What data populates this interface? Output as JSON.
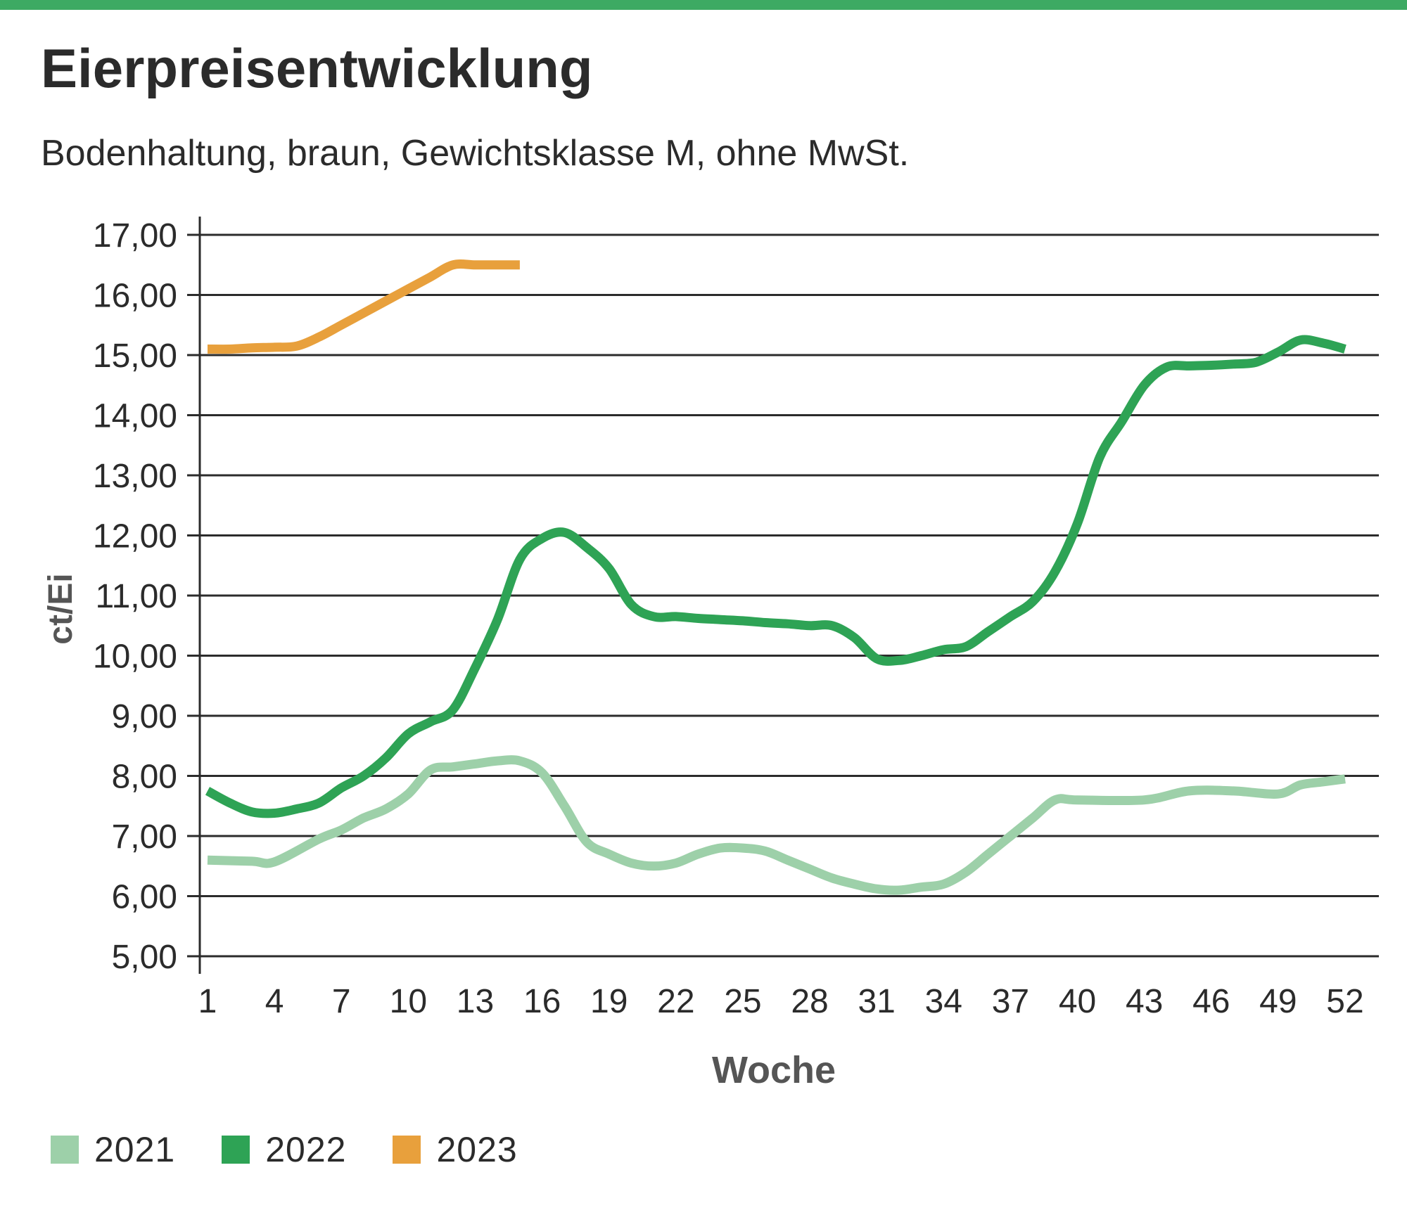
{
  "header": {
    "title": "Eierpreisentwicklung",
    "subtitle": "Bodenhaltung, braun, Gewichtsklasse M, ohne MwSt.",
    "accent_color": "#3daa63"
  },
  "chart_data": {
    "type": "line",
    "title": "Eierpreisentwicklung",
    "subtitle": "Bodenhaltung, braun, Gewichtsklasse M, ohne MwSt.",
    "xlabel": "Woche",
    "ylabel": "ct/Ei",
    "xlim": [
      1,
      52
    ],
    "ylim": [
      5,
      17
    ],
    "x_ticks": [
      "1",
      "4",
      "7",
      "10",
      "13",
      "16",
      "19",
      "22",
      "25",
      "28",
      "31",
      "34",
      "37",
      "40",
      "43",
      "46",
      "49",
      "52"
    ],
    "y_ticks": [
      "5,00",
      "6,00",
      "7,00",
      "8,00",
      "9,00",
      "10,00",
      "11,00",
      "12,00",
      "13,00",
      "14,00",
      "15,00",
      "16,00",
      "17,00"
    ],
    "grid": true,
    "legend_position": "bottom-left",
    "series": [
      {
        "name": "2021",
        "color": "#9dd0a9",
        "x": [
          1,
          3,
          4,
          6,
          7,
          8,
          9,
          10,
          11,
          12,
          13,
          14,
          15,
          16,
          17,
          18,
          19,
          20,
          21,
          22,
          23,
          24,
          25,
          26,
          27,
          28,
          29,
          30,
          31,
          32,
          33,
          34,
          35,
          36,
          37,
          38,
          39,
          40,
          43,
          45,
          47,
          49,
          50,
          51,
          52
        ],
        "values": [
          6.6,
          6.58,
          6.57,
          6.95,
          7.1,
          7.3,
          7.45,
          7.7,
          8.1,
          8.15,
          8.2,
          8.25,
          8.25,
          8.05,
          7.5,
          6.9,
          6.7,
          6.55,
          6.5,
          6.55,
          6.7,
          6.8,
          6.8,
          6.75,
          6.6,
          6.45,
          6.3,
          6.2,
          6.12,
          6.1,
          6.15,
          6.2,
          6.4,
          6.7,
          7.0,
          7.3,
          7.6,
          7.6,
          7.6,
          7.75,
          7.75,
          7.7,
          7.85,
          7.9,
          7.95
        ]
      },
      {
        "name": "2022",
        "color": "#2ea355",
        "x": [
          1,
          2,
          3,
          4,
          5,
          6,
          7,
          8,
          9,
          10,
          11,
          12,
          13,
          14,
          15,
          16,
          17,
          18,
          19,
          20,
          21,
          22,
          23,
          24,
          25,
          26,
          27,
          28,
          29,
          30,
          31,
          32,
          33,
          34,
          35,
          36,
          37,
          38,
          39,
          40,
          41,
          42,
          43,
          44,
          45,
          46,
          47,
          48,
          49,
          50,
          51,
          52
        ],
        "values": [
          7.75,
          7.55,
          7.4,
          7.38,
          7.45,
          7.55,
          7.8,
          8.0,
          8.3,
          8.7,
          8.9,
          9.1,
          9.8,
          10.6,
          11.6,
          11.95,
          12.05,
          11.8,
          11.45,
          10.85,
          10.65,
          10.65,
          10.62,
          10.6,
          10.58,
          10.55,
          10.53,
          10.5,
          10.5,
          10.3,
          9.95,
          9.92,
          10.0,
          10.1,
          10.15,
          10.4,
          10.65,
          10.9,
          11.4,
          12.2,
          13.3,
          13.9,
          14.5,
          14.8,
          14.82,
          14.83,
          14.85,
          14.88,
          15.05,
          15.25,
          15.2,
          15.1
        ]
      },
      {
        "name": "2023",
        "color": "#e8a03c",
        "x": [
          1,
          2,
          3,
          4,
          5,
          6,
          7,
          8,
          9,
          10,
          11,
          12,
          13,
          14,
          15
        ],
        "values": [
          15.1,
          15.1,
          15.12,
          15.13,
          15.15,
          15.3,
          15.5,
          15.7,
          15.9,
          16.1,
          16.3,
          16.5,
          16.5,
          16.5,
          16.5
        ]
      }
    ]
  }
}
